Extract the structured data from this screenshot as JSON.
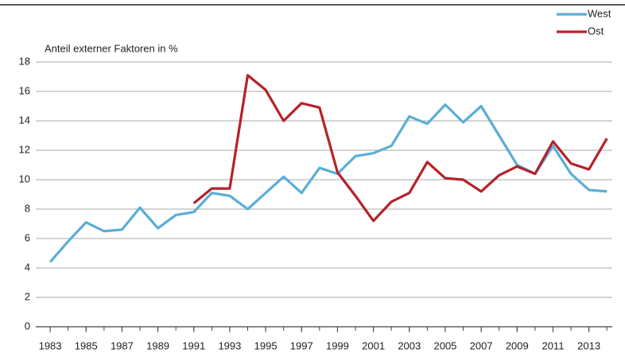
{
  "chart_data": {
    "type": "line",
    "y_axis_label": "Anteil externer Faktoren in %",
    "x": [
      1983,
      1984,
      1985,
      1986,
      1987,
      1988,
      1989,
      1990,
      1991,
      1992,
      1993,
      1994,
      1995,
      1996,
      1997,
      1998,
      1999,
      2000,
      2001,
      2002,
      2003,
      2004,
      2005,
      2006,
      2007,
      2008,
      2009,
      2010,
      2011,
      2012,
      2013,
      2014
    ],
    "series": [
      {
        "name": "West",
        "color": "#5aaed6",
        "values": [
          4.4,
          5.8,
          7.1,
          6.5,
          6.6,
          8.1,
          6.7,
          7.6,
          7.8,
          9.1,
          8.9,
          8.0,
          9.1,
          10.2,
          9.1,
          10.8,
          10.4,
          11.6,
          11.8,
          12.3,
          14.3,
          13.8,
          15.1,
          13.9,
          15.0,
          13.0,
          11.0,
          10.4,
          12.3,
          10.4,
          9.3,
          9.2
        ]
      },
      {
        "name": "Ost",
        "color": "#b5222a",
        "values": [
          null,
          null,
          null,
          null,
          null,
          null,
          null,
          null,
          8.4,
          9.4,
          9.4,
          17.1,
          16.1,
          14.0,
          15.2,
          14.9,
          10.5,
          8.9,
          7.2,
          8.5,
          9.1,
          11.2,
          10.1,
          10.0,
          9.2,
          10.3,
          10.9,
          10.4,
          12.6,
          11.1,
          10.7,
          12.8
        ]
      }
    ],
    "xlim": [
      1982.2,
      2014.3
    ],
    "xticks": [
      1983,
      1985,
      1987,
      1989,
      1991,
      1993,
      1995,
      1997,
      1999,
      2001,
      2003,
      2005,
      2007,
      2009,
      2011,
      2013
    ],
    "ylim": [
      0,
      18
    ],
    "yticks": [
      0,
      2,
      4,
      6,
      8,
      10,
      12,
      14,
      16,
      18
    ],
    "grid": true,
    "legend": "top-right"
  }
}
